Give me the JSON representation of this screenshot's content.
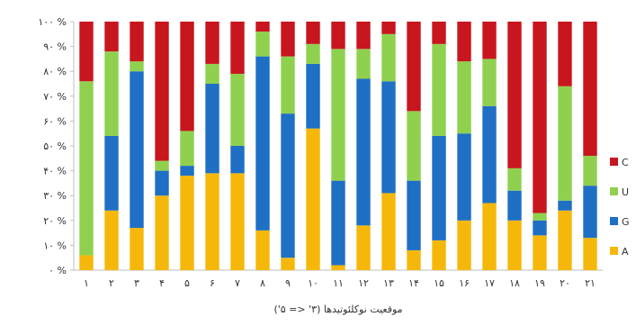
{
  "chart_data": {
    "type": "bar",
    "stacked": true,
    "categories": [
      "۱",
      "۲",
      "۳",
      "۴",
      "۵",
      "۶",
      "۷",
      "۸",
      "۹",
      "۱۰",
      "۱۱",
      "۱۲",
      "۱۳",
      "۱۴",
      "۱۵",
      "۱۶",
      "۱۷",
      "۱۸",
      "۱۹",
      "۲۰",
      "۲۱"
    ],
    "y_tick_labels": [
      "۰ %",
      "۱۰ %",
      "۲۰ %",
      "۳۰ %",
      "۴۰ %",
      "۵۰ %",
      "۶۰ %",
      "۷۰ %",
      "۸۰ %",
      "۹۰ %",
      "۱۰۰ %"
    ],
    "xlabel": "موقعیت نوکلئوتیدها (۳' <= ۵')",
    "ylabel": "",
    "ylim": [
      0,
      100
    ],
    "legend_position": "right",
    "series": [
      {
        "name": "A",
        "color": "#f5b80a",
        "values": [
          6,
          24,
          17,
          30,
          38,
          39,
          39,
          16,
          5,
          57,
          2,
          18,
          31,
          8,
          12,
          20,
          27,
          20,
          14,
          24,
          13
        ]
      },
      {
        "name": "G",
        "color": "#1f6fc5",
        "values": [
          0,
          30,
          63,
          10,
          4,
          36,
          11,
          70,
          58,
          26,
          34,
          59,
          45,
          28,
          42,
          35,
          39,
          12,
          6,
          4,
          21
        ]
      },
      {
        "name": "U",
        "color": "#8fd14f",
        "values": [
          70,
          34,
          4,
          4,
          14,
          8,
          29,
          10,
          23,
          8,
          53,
          12,
          19,
          28,
          37,
          29,
          19,
          9,
          3,
          46,
          12
        ]
      },
      {
        "name": "C",
        "color": "#c8161e",
        "values": [
          24,
          12,
          16,
          56,
          44,
          17,
          21,
          4,
          14,
          9,
          11,
          11,
          5,
          36,
          9,
          16,
          15,
          59,
          77,
          26,
          54
        ]
      }
    ],
    "legend_order": [
      "C",
      "U",
      "G",
      "A"
    ]
  }
}
